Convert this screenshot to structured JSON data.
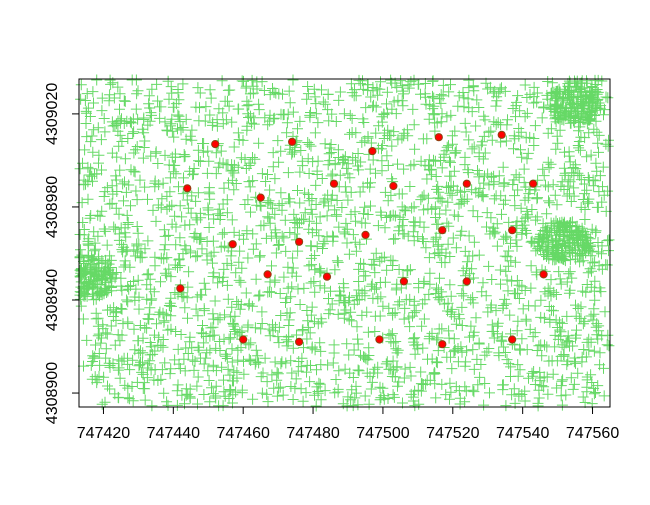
{
  "chart_data": {
    "type": "scatter",
    "title": "",
    "xlabel": "",
    "ylabel": "",
    "xlim": [
      747413,
      747565
    ],
    "ylim": [
      4308894,
      4309035
    ],
    "x_ticks": [
      747420,
      747440,
      747460,
      747480,
      747500,
      747520,
      747540,
      747560
    ],
    "x_tick_labels": [
      "747420",
      "747440",
      "747460",
      "747480",
      "747500",
      "747520",
      "747540",
      "747560"
    ],
    "y_ticks": [
      4308900,
      4308940,
      4308980,
      4309020
    ],
    "y_tick_labels": [
      "4308900",
      "4308940",
      "4308980",
      "4309020"
    ],
    "grid": false,
    "legend": "none",
    "background_marks": {
      "description_shape": "plus",
      "color": "#33cc33",
      "approx_count": 3000,
      "dense_clusters": [
        {
          "x": 747552,
          "y": 4308965
        },
        {
          "x": 747416,
          "y": 4308950
        },
        {
          "x": 747555,
          "y": 4309025
        }
      ]
    },
    "series": [
      {
        "color": "#ff0000",
        "edge": "#8b4513",
        "x": [
          747442,
          747444,
          747452,
          747457,
          747460,
          747465,
          747467,
          747474,
          747476,
          747476,
          747484,
          747486,
          747495,
          747497,
          747499,
          747503,
          747506,
          747516,
          747517,
          747517,
          747524,
          747524,
          747534,
          747537,
          747537,
          747543,
          747546
        ],
        "y": [
          4308945,
          4308988,
          4309007,
          4308964,
          4308923,
          4308984,
          4308951,
          4309008,
          4308965,
          4308922,
          4308950,
          4308990,
          4308968,
          4309004,
          4308923,
          4308989,
          4308948,
          4309010,
          4308970,
          4308921,
          4308990,
          4308948,
          4309011,
          4308970,
          4308923,
          4308990,
          4308951
        ]
      }
    ]
  }
}
